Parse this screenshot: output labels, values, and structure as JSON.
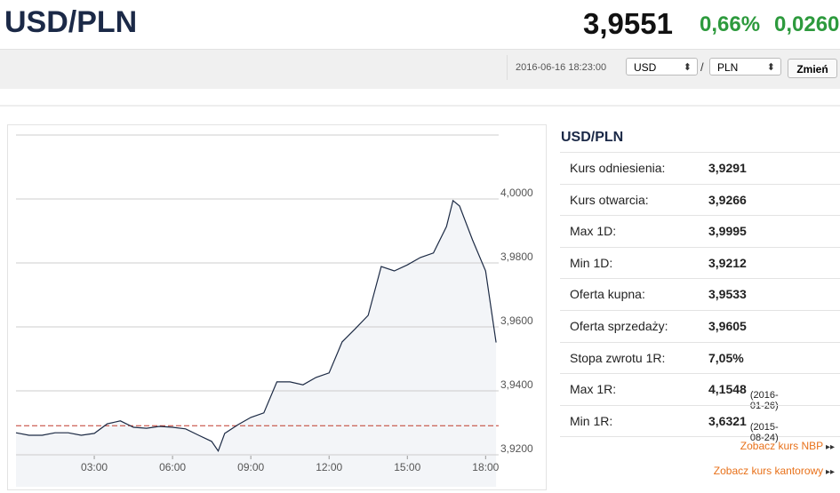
{
  "header": {
    "title": "USD/PLN",
    "rate": "3,9551",
    "change_pct": "0,66%",
    "change_abs": "0,0260"
  },
  "toolbar": {
    "timestamp": "2016-06-16 18:23:00",
    "from": "USD",
    "separator": "/",
    "to": "PLN",
    "button": "Zmień"
  },
  "chart_data": {
    "type": "line",
    "x": [
      0,
      0.5,
      1,
      1.5,
      2,
      2.5,
      3,
      3.5,
      4,
      4.5,
      5,
      5.5,
      6,
      6.5,
      7,
      7.5,
      7.75,
      8,
      8.5,
      9,
      9.5,
      10,
      10.5,
      11,
      11.5,
      12,
      12.5,
      13,
      13.5,
      14,
      14.5,
      15,
      15.5,
      16,
      16.5,
      16.75,
      17,
      17.5,
      18,
      18.4
    ],
    "series": [
      {
        "color": "#1c2a44",
        "values": [
          3.9269,
          3.9261,
          3.9261,
          3.9269,
          3.9269,
          3.9261,
          3.9267,
          3.9297,
          3.9306,
          3.9286,
          3.9283,
          3.9289,
          3.9286,
          3.9281,
          3.9261,
          3.9242,
          3.9212,
          3.9267,
          3.9294,
          3.9317,
          3.9331,
          3.9428,
          3.9428,
          3.9419,
          3.9442,
          3.9456,
          3.9553,
          3.9594,
          3.9636,
          3.9789,
          3.9775,
          3.9794,
          3.9817,
          3.9831,
          3.9914,
          3.9995,
          3.9978,
          3.9872,
          3.9775,
          3.9551
        ]
      }
    ],
    "area_color": "#f3f5f8",
    "reference": 3.9291,
    "reference_color": "#c0392b",
    "xlim": [
      0,
      18.5
    ],
    "xticks": [
      {
        "value": 3,
        "label": "03:00"
      },
      {
        "value": 6,
        "label": "06:00"
      },
      {
        "value": 9,
        "label": "09:00"
      },
      {
        "value": 12,
        "label": "12:00"
      },
      {
        "value": 15,
        "label": "15:00"
      },
      {
        "value": 18,
        "label": "18:00"
      }
    ],
    "ylim": [
      3.91,
      4.02
    ],
    "yticks": [
      {
        "value": 3.92,
        "label": "3,9200"
      },
      {
        "value": 3.94,
        "label": "3,9400"
      },
      {
        "value": 3.96,
        "label": "3,9600"
      },
      {
        "value": 3.98,
        "label": "3,9800"
      },
      {
        "value": 4.0,
        "label": "4,0000"
      }
    ],
    "grid": true
  },
  "panel": {
    "title": "USD/PLN",
    "rows": [
      {
        "label": "Kurs odniesienia:",
        "value": "3,9291"
      },
      {
        "label": "Kurs otwarcia:",
        "value": "3,9266"
      },
      {
        "label": "Max 1D:",
        "value": "3,9995"
      },
      {
        "label": "Min 1D:",
        "value": "3,9212"
      },
      {
        "label": "Oferta kupna:",
        "value": "3,9533"
      },
      {
        "label": "Oferta sprzedaży:",
        "value": "3,9605"
      },
      {
        "label": "Stopa zwrotu 1R:",
        "value": "7,05%"
      },
      {
        "label": "Max 1R:",
        "value": "4,1548",
        "note": "(2016-01-26)"
      },
      {
        "label": "Min 1R:",
        "value": "3,6321",
        "note": "(2015-08-24)"
      }
    ],
    "links": [
      "Zobacz kurs NBP",
      "Zobacz kurs kantorowy"
    ]
  }
}
